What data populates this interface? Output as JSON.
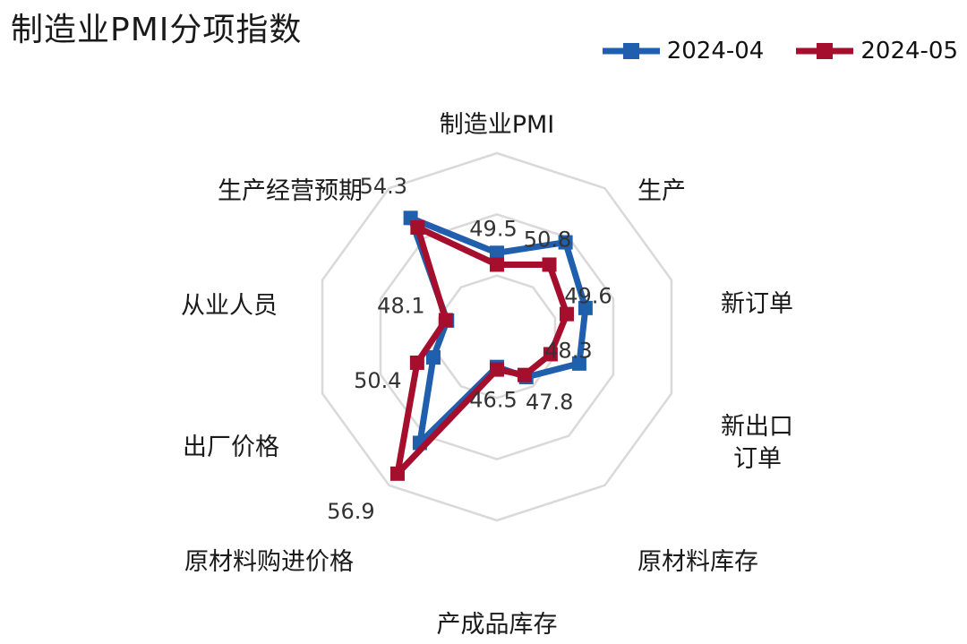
{
  "chart_data": {
    "type": "radar",
    "title": "制造业PMI分项指数",
    "categories": [
      "制造业PMI",
      "生产",
      "新订单",
      "新出口订单",
      "原材料库存",
      "产成品库存",
      "原材料购进价格",
      "出厂价格",
      "从业人员",
      "生产经营预期"
    ],
    "series": [
      {
        "name": "2024-04",
        "color": "#1f5fad",
        "values": [
          50.4,
          52.9,
          51.1,
          50.6,
          47.8,
          46.3,
          54.0,
          49.1,
          48.0,
          55.2
        ]
      },
      {
        "name": "2024-05",
        "color": "#a50f2d",
        "values": [
          49.5,
          50.8,
          49.6,
          48.3,
          47.6,
          46.5,
          56.9,
          50.4,
          48.1,
          54.3
        ]
      }
    ],
    "data_labels": [
      {
        "text": "49.5",
        "series": 1,
        "index": 0
      },
      {
        "text": "50.8",
        "series": 1,
        "index": 1
      },
      {
        "text": "49.6",
        "series": 1,
        "index": 2
      },
      {
        "text": "48.3",
        "series": 1,
        "index": 3
      },
      {
        "text": "47.8",
        "series": 0,
        "index": 4
      },
      {
        "text": "46.5",
        "series": 1,
        "index": 5
      },
      {
        "text": "56.9",
        "series": 1,
        "index": 6
      },
      {
        "text": "50.4",
        "series": 1,
        "index": 7
      },
      {
        "text": "48.1",
        "series": 1,
        "index": 8
      },
      {
        "text": "54.3",
        "series": 1,
        "index": 9
      }
    ],
    "rlim": [
      44,
      58
    ],
    "grid": true,
    "legend_position": "top-right"
  }
}
